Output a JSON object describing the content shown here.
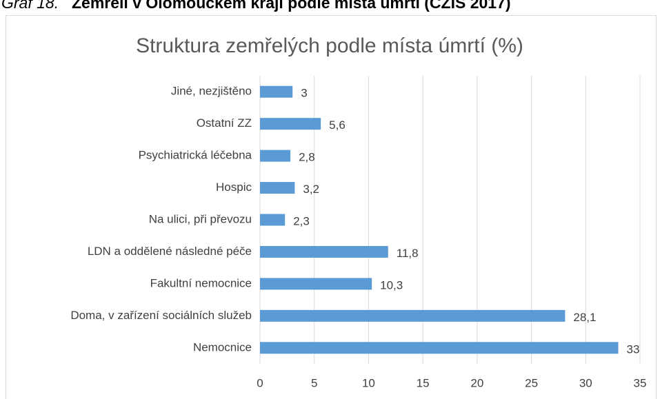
{
  "caption_label": "Graf 18.",
  "caption_text": "Zemřelí v Olomouckém kraji podle místa úmrtí (ČZIS 2017)",
  "chart_data": {
    "type": "bar",
    "orientation": "horizontal",
    "title": "Struktura zemřelých podle místa úmrtí (%)",
    "categories": [
      "Jiné, nezjištěno",
      "Ostatní ZZ",
      "Psychiatrická léčebna",
      "Hospic",
      "Na ulici, při převozu",
      "LDN a oddělené následné péče",
      "Fakultní nemocnice",
      "Doma, v zařízení sociálních služeb",
      "Nemocnice"
    ],
    "values": [
      3,
      5.6,
      2.8,
      3.2,
      2.3,
      11.8,
      10.3,
      28.1,
      33
    ],
    "value_labels": [
      "3",
      "5,6",
      "2,8",
      "3,2",
      "2,3",
      "11,8",
      "10,3",
      "28,1",
      "33"
    ],
    "color": "#5b9bd5",
    "xlim": [
      0,
      35
    ],
    "xticks": [
      0,
      5,
      10,
      15,
      20,
      25,
      30,
      35
    ],
    "grid": true
  }
}
